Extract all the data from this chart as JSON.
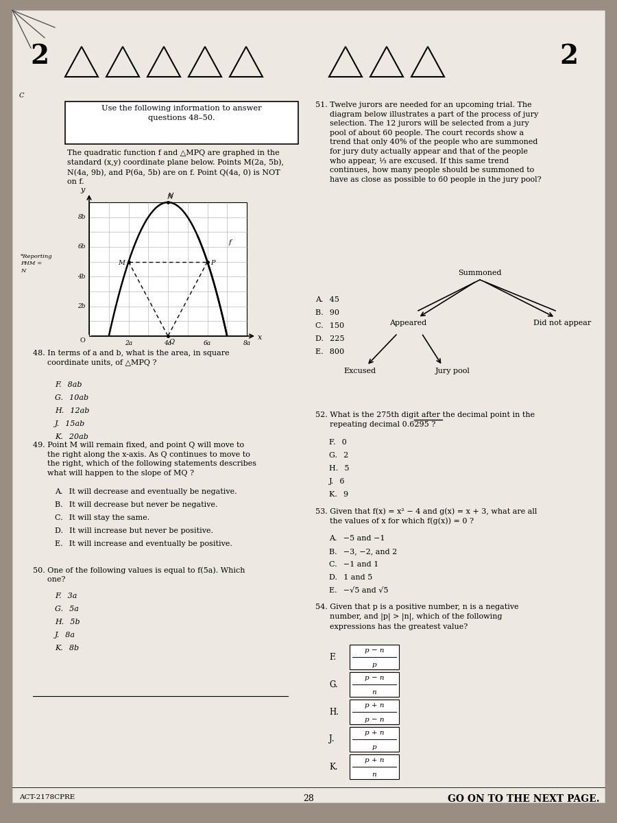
{
  "paper_color": "#ede8e0",
  "bg_color": "#9a8e82",
  "header_number": "2",
  "header_tri_count": 8,
  "footer_left": "ACT-2178CPRE",
  "footer_center": "28",
  "footer_right": "GO ON TO THE NEXT PAGE.",
  "info_box": "Use the following information to answer\nquestions 48–50.",
  "info_text": "The quadratic function f and △MPQ are graphed in the\nstandard (x,y) coordinate plane below. Points M(2a, 5b),\nN(4a, 9b), and P(6a, 5b) are on f. Point Q(4a, 0) is NOT\non f.",
  "left_margin_text": "*Reporting\nPHM =\nN",
  "q48_text": "48. In terms of a and b, what is the area, in square\n      coordinate units, of △MPQ ?",
  "q48_choices": [
    "F.  8ab",
    "G.  10ab",
    "H.  12ab",
    "J.  15ab",
    "K.  20ab"
  ],
  "q49_text": "49. Point M will remain fixed, and point Q will move to\n      the right along the x-axis. As Q continues to move to\n      the right, which of the following statements describes\n      what will happen to the slope of MQ ?",
  "q49_choices": [
    "A.  It will decrease and eventually be negative.",
    "B.  It will decrease but never be negative.",
    "C.  It will stay the same.",
    "D.  It will increase but never be positive.",
    "E.  It will increase and eventually be positive."
  ],
  "q50_text": "50. One of the following values is equal to f(5a). Which\n      one?",
  "q50_choices": [
    "F.  3a",
    "G.  5a",
    "H.  5b",
    "J.  8a",
    "K.  8b"
  ],
  "q51_text": "51. Twelve jurors are needed for an upcoming trial. The\n      diagram below illustrates a part of the process of jury\n      selection. The 12 jurors will be selected from a jury\n      pool of about 60 people. The court records show a\n      trend that only 40% of the people who are summoned\n      for jury duty actually appear and that of the people\n      who appear, ⅓ are excused. If this same trend\n      continues, how many people should be summoned to\n      have as close as possible to 60 people in the jury pool?",
  "q51_choices": [
    "A.  45",
    "B.  90",
    "C.  150",
    "D.  225",
    "E.  800"
  ],
  "q52_text": "52. What is the 275th digit after the decimal point in the\n      repeating decimal 0.6295 ?",
  "q52_choices": [
    "F.  0",
    "G.  2",
    "H.  5",
    "J.  6",
    "K.  9"
  ],
  "q53_text": "53. Given that f(x) = x² − 4 and g(x) = x + 3, what are all\n      the values of x for which f(g(x)) = 0 ?",
  "q53_choices": [
    "A.  −5 and −1",
    "B.  −3, −2, and 2",
    "C.  −1 and 1",
    "D.  1 and 5",
    "E.  −√5 and √5"
  ],
  "q54_text": "54. Given that p is a positive number, n is a negative\n      number, and |p| > |n|, which of the following\n      expressions has the greatest value?",
  "q54_frac_letters": [
    "F.",
    "G.",
    "H.",
    "J.",
    "K."
  ],
  "q54_numerators": [
    "p − n",
    "p − n",
    "p + n",
    "p + n",
    "p + n"
  ],
  "q54_denominators": [
    "p",
    "n",
    "p − n",
    "p",
    "n"
  ]
}
